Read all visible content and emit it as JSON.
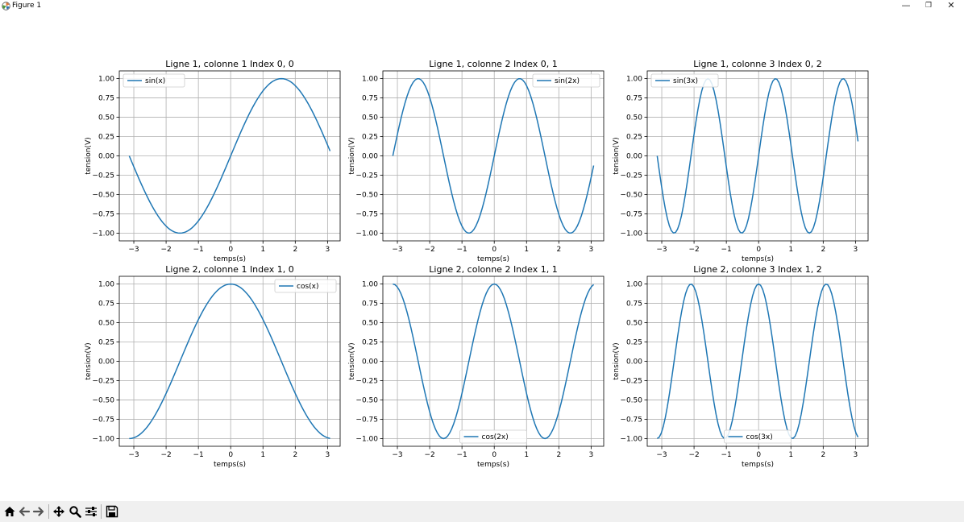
{
  "window": {
    "title": "Figure 1"
  },
  "chart_data": [
    {
      "type": "line",
      "title": "Ligne 1, colonne 1 Index 0, 0",
      "xlabel": "temps(s)",
      "ylabel": "tension(V)",
      "function": "sin",
      "k": 1,
      "legend_label": "sin(x)",
      "legend_loc": "upper left",
      "x_range": [
        -3.14159,
        3.07876
      ],
      "points": 100,
      "xlim": [
        -3.45,
        3.39
      ],
      "ylim": [
        -1.1,
        1.1
      ],
      "xticks": [
        -3,
        -2,
        -1,
        0,
        1,
        2,
        3
      ],
      "xtick_labels": [
        "−3",
        "−2",
        "−1",
        "0",
        "1",
        "2",
        "3"
      ],
      "yticks": [
        -1,
        -0.75,
        -0.5,
        -0.25,
        0,
        0.25,
        0.5,
        0.75,
        1
      ],
      "ytick_labels": [
        "−1.00",
        "−0.75",
        "−0.50",
        "−0.25",
        "0.00",
        "0.25",
        "0.50",
        "0.75",
        "1.00"
      ],
      "grid": true,
      "color": "#1f77b4"
    },
    {
      "type": "line",
      "title": "Ligne 1, colonne 2 Index 0, 1",
      "xlabel": "temps(s)",
      "ylabel": "tension(V)",
      "function": "sin",
      "k": 2,
      "legend_label": "sin(2x)",
      "legend_loc": "upper right",
      "x_range": [
        -3.14159,
        3.07876
      ],
      "points": 100,
      "xlim": [
        -3.45,
        3.39
      ],
      "ylim": [
        -1.1,
        1.1
      ],
      "xticks": [
        -3,
        -2,
        -1,
        0,
        1,
        2,
        3
      ],
      "xtick_labels": [
        "−3",
        "−2",
        "−1",
        "0",
        "1",
        "2",
        "3"
      ],
      "yticks": [
        -1,
        -0.75,
        -0.5,
        -0.25,
        0,
        0.25,
        0.5,
        0.75,
        1
      ],
      "ytick_labels": [
        "−1.00",
        "−0.75",
        "−0.50",
        "−0.25",
        "0.00",
        "0.25",
        "0.50",
        "0.75",
        "1.00"
      ],
      "grid": true,
      "color": "#1f77b4"
    },
    {
      "type": "line",
      "title": "Ligne 1, colonne 3 Index 0, 2",
      "xlabel": "temps(s)",
      "ylabel": "tension(V)",
      "function": "sin",
      "k": 3,
      "legend_label": "sin(3x)",
      "legend_loc": "upper left",
      "x_range": [
        -3.14159,
        3.07876
      ],
      "points": 100,
      "xlim": [
        -3.45,
        3.39
      ],
      "ylim": [
        -1.1,
        1.1
      ],
      "xticks": [
        -3,
        -2,
        -1,
        0,
        1,
        2,
        3
      ],
      "xtick_labels": [
        "−3",
        "−2",
        "−1",
        "0",
        "1",
        "2",
        "3"
      ],
      "yticks": [
        -1,
        -0.75,
        -0.5,
        -0.25,
        0,
        0.25,
        0.5,
        0.75,
        1
      ],
      "ytick_labels": [
        "−1.00",
        "−0.75",
        "−0.50",
        "−0.25",
        "0.00",
        "0.25",
        "0.50",
        "0.75",
        "1.00"
      ],
      "grid": true,
      "color": "#1f77b4"
    },
    {
      "type": "line",
      "title": "Ligne 2, colonne 1 Index 1, 0",
      "xlabel": "temps(s)",
      "ylabel": "tension(V)",
      "function": "cos",
      "k": 1,
      "legend_label": "cos(x)",
      "legend_loc": "upper right",
      "x_range": [
        -3.14159,
        3.07876
      ],
      "points": 100,
      "xlim": [
        -3.45,
        3.39
      ],
      "ylim": [
        -1.1,
        1.1
      ],
      "xticks": [
        -3,
        -2,
        -1,
        0,
        1,
        2,
        3
      ],
      "xtick_labels": [
        "−3",
        "−2",
        "−1",
        "0",
        "1",
        "2",
        "3"
      ],
      "yticks": [
        -1,
        -0.75,
        -0.5,
        -0.25,
        0,
        0.25,
        0.5,
        0.75,
        1
      ],
      "ytick_labels": [
        "−1.00",
        "−0.75",
        "−0.50",
        "−0.25",
        "0.00",
        "0.25",
        "0.50",
        "0.75",
        "1.00"
      ],
      "grid": true,
      "color": "#1f77b4"
    },
    {
      "type": "line",
      "title": "Ligne 2, colonne 2 Index 1, 1",
      "xlabel": "temps(s)",
      "ylabel": "tension(V)",
      "function": "cos",
      "k": 2,
      "legend_label": "cos(2x)",
      "legend_loc": "lower center",
      "x_range": [
        -3.14159,
        3.07876
      ],
      "points": 100,
      "xlim": [
        -3.45,
        3.39
      ],
      "ylim": [
        -1.1,
        1.1
      ],
      "xticks": [
        -3,
        -2,
        -1,
        0,
        1,
        2,
        3
      ],
      "xtick_labels": [
        "−3",
        "−2",
        "−1",
        "0",
        "1",
        "2",
        "3"
      ],
      "yticks": [
        -1,
        -0.75,
        -0.5,
        -0.25,
        0,
        0.25,
        0.5,
        0.75,
        1
      ],
      "ytick_labels": [
        "−1.00",
        "−0.75",
        "−0.50",
        "−0.25",
        "0.00",
        "0.25",
        "0.50",
        "0.75",
        "1.00"
      ],
      "grid": true,
      "color": "#1f77b4"
    },
    {
      "type": "line",
      "title": "Ligne 2, colonne 3 Index 1, 2",
      "xlabel": "temps(s)",
      "ylabel": "tension(V)",
      "function": "cos",
      "k": 3,
      "legend_label": "cos(3x)",
      "legend_loc": "lower center",
      "x_range": [
        -3.14159,
        3.07876
      ],
      "points": 100,
      "xlim": [
        -3.45,
        3.39
      ],
      "ylim": [
        -1.1,
        1.1
      ],
      "xticks": [
        -3,
        -2,
        -1,
        0,
        1,
        2,
        3
      ],
      "xtick_labels": [
        "−3",
        "−2",
        "−1",
        "0",
        "1",
        "2",
        "3"
      ],
      "yticks": [
        -1,
        -0.75,
        -0.5,
        -0.25,
        0,
        0.25,
        0.5,
        0.75,
        1
      ],
      "ytick_labels": [
        "−1.00",
        "−0.75",
        "−0.50",
        "−0.25",
        "0.00",
        "0.25",
        "0.50",
        "0.75",
        "1.00"
      ],
      "grid": true,
      "color": "#1f77b4"
    }
  ],
  "toolbar": {
    "buttons": [
      {
        "name": "home-icon"
      },
      {
        "name": "back-icon"
      },
      {
        "name": "forward-icon"
      },
      {
        "name": "pan-icon"
      },
      {
        "name": "zoom-icon"
      },
      {
        "name": "configure-subplots-icon"
      },
      {
        "name": "save-icon"
      }
    ]
  }
}
